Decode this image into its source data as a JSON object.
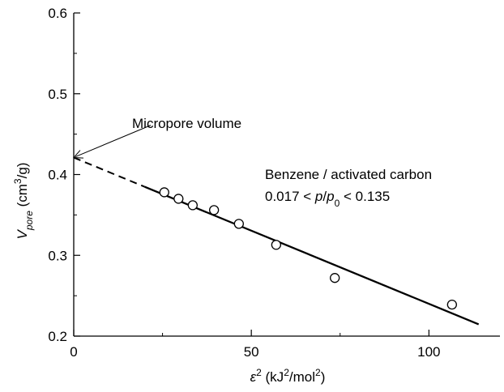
{
  "chart_data": {
    "type": "scatter",
    "xlim": [
      0,
      120
    ],
    "ylim": [
      0.2,
      0.6
    ],
    "x_ticks": [
      0,
      50,
      100
    ],
    "y_ticks": [
      0.2,
      0.3,
      0.4,
      0.5,
      0.6
    ],
    "x_tick_labels": [
      "0",
      "50",
      "100"
    ],
    "y_tick_labels": [
      "0.2",
      "0.3",
      "0.4",
      "0.5",
      "0.6"
    ],
    "grid": false,
    "xlabel": {
      "symbol": "ε",
      "sup": "2",
      "unit_open": " (kJ",
      "unit_sup": "2",
      "unit_mid": "/mol",
      "unit_sup2": "2",
      "unit_close": ")"
    },
    "ylabel": {
      "symbol": "V",
      "sub": "pore",
      "unit_open": " (cm",
      "unit_sup": "3",
      "unit_close": "/g)"
    },
    "points": {
      "x": [
        25.5,
        29.5,
        33.5,
        39.5,
        46.5,
        57.0,
        73.5,
        106.5
      ],
      "y": [
        0.378,
        0.37,
        0.362,
        0.356,
        0.339,
        0.313,
        0.272,
        0.239
      ]
    },
    "fit_line": {
      "intercept": 0.421,
      "slope": -0.00181,
      "dashed_range": [
        0,
        20
      ],
      "solid_range": [
        20,
        114
      ]
    },
    "annotations": {
      "micropore": {
        "text": "Micropore volume",
        "arrow_tail": [
          8,
          0.451
        ],
        "arrow_head": [
          0,
          0.421
        ]
      },
      "system": {
        "line1": "Benzene / activated carbon",
        "line2_a": "0.017 < ",
        "line2_p": "p",
        "line2_slash": "/",
        "line2_p0": "p",
        "line2_sub": "0",
        "line2_b": " < 0.135"
      }
    }
  }
}
